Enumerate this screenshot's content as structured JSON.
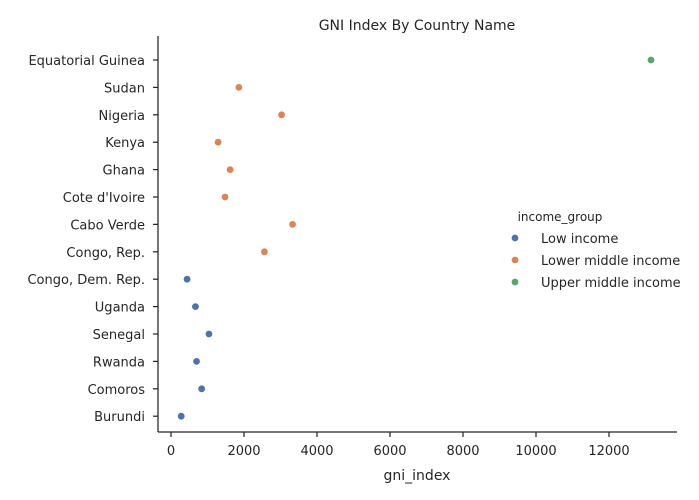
{
  "chart_data": {
    "type": "scatter",
    "title": "GNI Index By Country Name",
    "xlabel": "gni_index",
    "ylabel": "",
    "xlim": [
      -300,
      13900
    ],
    "xticks": [
      0,
      2000,
      4000,
      6000,
      8000,
      10000,
      12000
    ],
    "grid": false,
    "legend_position": "right",
    "legend_title": "income_group",
    "categories": [
      "Equatorial Guinea",
      "Sudan",
      "Nigeria",
      "Kenya",
      "Ghana",
      "Cote d'Ivoire",
      "Cabo Verde",
      "Congo, Rep.",
      "Congo, Dem. Rep.",
      "Uganda",
      "Senegal",
      "Rwanda",
      "Comoros",
      "Burundi"
    ],
    "series": [
      {
        "name": "Low income",
        "color": "#4c72b0",
        "points": [
          {
            "category": "Congo, Dem. Rep.",
            "x": 440
          },
          {
            "category": "Uganda",
            "x": 670
          },
          {
            "category": "Senegal",
            "x": 1040
          },
          {
            "category": "Rwanda",
            "x": 700
          },
          {
            "category": "Comoros",
            "x": 840
          },
          {
            "category": "Burundi",
            "x": 280
          }
        ]
      },
      {
        "name": "Lower middle income",
        "color": "#dd8452",
        "points": [
          {
            "category": "Sudan",
            "x": 1860
          },
          {
            "category": "Nigeria",
            "x": 3030
          },
          {
            "category": "Kenya",
            "x": 1290
          },
          {
            "category": "Ghana",
            "x": 1620
          },
          {
            "category": "Cote d'Ivoire",
            "x": 1480
          },
          {
            "category": "Cabo Verde",
            "x": 3330
          },
          {
            "category": "Congo, Rep.",
            "x": 2560
          }
        ]
      },
      {
        "name": "Upper middle income",
        "color": "#55a868",
        "points": [
          {
            "category": "Equatorial Guinea",
            "x": 13150
          }
        ]
      }
    ]
  }
}
